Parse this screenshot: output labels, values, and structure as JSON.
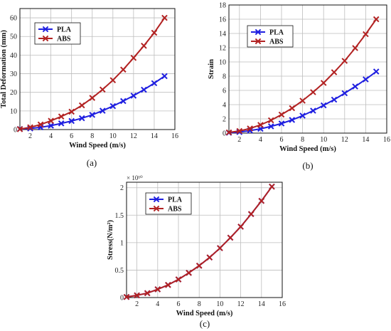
{
  "colors": {
    "PLA": "#1f1fe0",
    "ABS": "#b22222",
    "grid": "#bdbdbd"
  },
  "chart_data": [
    {
      "type": "line",
      "panel_label": "(a)",
      "xlabel": "Wind Speed (m/s)",
      "ylabel": "Total Deformation (mm)",
      "xlim": [
        1,
        16
      ],
      "ylim": [
        0,
        65
      ],
      "xticks": [
        2,
        4,
        6,
        8,
        10,
        12,
        14,
        16
      ],
      "yticks": [
        0,
        10,
        20,
        30,
        40,
        50,
        60
      ],
      "xtick_labels": [
        "2",
        "4",
        "6",
        "8",
        "10",
        "12",
        "14",
        "16"
      ],
      "ytick_labels": [
        "0",
        "10",
        "20",
        "30",
        "40",
        "50",
        "60"
      ],
      "exponent_label": "",
      "grid": true,
      "legend_position": "top-left",
      "x": [
        1,
        2,
        3,
        4,
        5,
        6,
        7,
        8,
        9,
        10,
        11,
        12,
        13,
        14,
        15
      ],
      "series": [
        {
          "name": "PLA",
          "values": [
            0.3,
            0.6,
            1.2,
            2.1,
            3.3,
            4.6,
            6.1,
            7.9,
            10.1,
            12.6,
            15.3,
            18.2,
            21.4,
            24.9,
            28.7
          ]
        },
        {
          "name": "ABS",
          "values": [
            0.2,
            1.2,
            2.7,
            4.7,
            7.0,
            9.6,
            13.0,
            17.0,
            21.5,
            26.5,
            32.2,
            38.5,
            45.0,
            52.0,
            60.0
          ]
        }
      ]
    },
    {
      "type": "line",
      "panel_label": "(b)",
      "xlabel": "Wind Speed (m/s)",
      "ylabel": "Strain",
      "xlim": [
        1,
        16
      ],
      "ylim": [
        0,
        18
      ],
      "xticks": [
        2,
        4,
        6,
        8,
        10,
        12,
        14,
        16
      ],
      "yticks": [
        0,
        2,
        4,
        6,
        8,
        10,
        12,
        14,
        16,
        18
      ],
      "xtick_labels": [
        "2",
        "4",
        "6",
        "8",
        "10",
        "12",
        "14",
        "16"
      ],
      "ytick_labels": [
        "0",
        "2",
        "4",
        "6",
        "8",
        "10",
        "12",
        "14",
        "16",
        "18"
      ],
      "exponent_label": "",
      "grid": true,
      "legend_position": "top-left",
      "x": [
        1,
        2,
        3,
        4,
        5,
        6,
        7,
        8,
        9,
        10,
        11,
        12,
        13,
        14,
        15
      ],
      "series": [
        {
          "name": "PLA",
          "values": [
            0.05,
            0.15,
            0.35,
            0.6,
            0.95,
            1.35,
            1.85,
            2.45,
            3.15,
            3.9,
            4.7,
            5.6,
            6.55,
            7.55,
            8.65
          ]
        },
        {
          "name": "ABS",
          "values": [
            0.1,
            0.3,
            0.65,
            1.15,
            1.8,
            2.6,
            3.5,
            4.55,
            5.75,
            7.05,
            8.55,
            10.15,
            11.95,
            13.9,
            16.0
          ]
        }
      ]
    },
    {
      "type": "line",
      "panel_label": "(c)",
      "xlabel": "Wind Speed (m/s)",
      "ylabel": "Stress(N/m²)",
      "xlim": [
        1,
        16
      ],
      "ylim": [
        0,
        2.1
      ],
      "xticks": [
        2,
        4,
        6,
        8,
        10,
        12,
        14,
        16
      ],
      "yticks": [
        0,
        0.5,
        1,
        1.5,
        2
      ],
      "xtick_labels": [
        "2",
        "4",
        "6",
        "8",
        "10",
        "12",
        "14",
        "16"
      ],
      "ytick_labels": [
        "0",
        "0.5",
        "1",
        "1.5",
        "2"
      ],
      "exponent_label": "× 10¹⁰",
      "grid": true,
      "legend_position": "top-left",
      "x": [
        1,
        2,
        3,
        4,
        5,
        6,
        7,
        8,
        9,
        10,
        11,
        12,
        13,
        14,
        15
      ],
      "series": [
        {
          "name": "PLA",
          "values": [
            0.01,
            0.04,
            0.08,
            0.15,
            0.23,
            0.33,
            0.45,
            0.58,
            0.73,
            0.9,
            1.09,
            1.29,
            1.52,
            1.76,
            2.02
          ]
        },
        {
          "name": "ABS",
          "values": [
            0.01,
            0.04,
            0.08,
            0.15,
            0.23,
            0.33,
            0.45,
            0.58,
            0.73,
            0.9,
            1.09,
            1.29,
            1.52,
            1.76,
            2.02
          ]
        }
      ]
    }
  ]
}
